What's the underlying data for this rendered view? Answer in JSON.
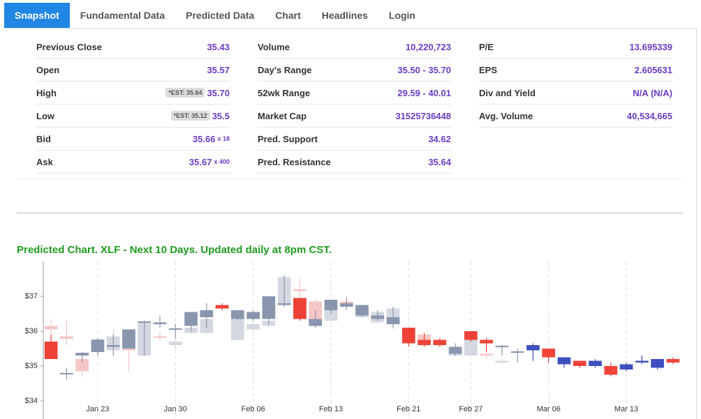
{
  "tabs": [
    "Snapshot",
    "Fundamental Data",
    "Predicted Data",
    "Chart",
    "Headlines",
    "Login"
  ],
  "snapshot": {
    "columns": [
      [
        {
          "label": "Previous Close",
          "value": "35.43"
        },
        {
          "label": "Open",
          "value": "35.57"
        },
        {
          "label": "High",
          "badge": "*EST: 35.64",
          "value": "35.70"
        },
        {
          "label": "Low",
          "badge": "*EST: 35.12",
          "value": "35.5"
        },
        {
          "label": "Bid",
          "value": "35.66",
          "size": "x 18"
        },
        {
          "label": "Ask",
          "value": "35.67",
          "size": "x 400"
        }
      ],
      [
        {
          "label": "Volume",
          "value": "10,220,723"
        },
        {
          "label": "Day's Range",
          "value": "35.50 - 35.70"
        },
        {
          "label": "52wk Range",
          "value": "29.59 - 40.01"
        },
        {
          "label": "Market Cap",
          "value": "31525736448"
        },
        {
          "label": "Pred. Support",
          "value": "34.62"
        },
        {
          "label": "Pred. Resistance",
          "value": "35.64"
        }
      ],
      [
        {
          "label": "P/E",
          "value": "13.695339"
        },
        {
          "label": "EPS",
          "value": "2.605631"
        },
        {
          "label": "Div and Yield",
          "value": "N/A (N/A)"
        },
        {
          "label": "Avg. Volume",
          "value": "40,534,665"
        }
      ]
    ]
  },
  "chart_data": {
    "type": "candlestick",
    "title": "Predicted Chart. XLF - Next 10 Days. Updated daily at 8pm CST.",
    "title_color": "#1f9a1f",
    "categories": [
      null,
      null,
      null,
      "Jan 23",
      null,
      null,
      null,
      null,
      "Jan 30",
      null,
      null,
      null,
      null,
      "Feb 06",
      null,
      null,
      null,
      null,
      "Feb 13",
      null,
      null,
      null,
      null,
      "Feb 21",
      null,
      null,
      null,
      "Feb 27",
      null,
      null,
      null,
      null,
      "Mar 06",
      null,
      null,
      null,
      null,
      "Mar 13",
      null,
      null,
      null
    ],
    "ylim": [
      34,
      38
    ],
    "yticks": [
      {
        "value": 34,
        "label": "$34"
      },
      {
        "value": 35,
        "label": "$35"
      },
      {
        "value": 36,
        "label": "$36"
      },
      {
        "value": 37,
        "label": "$37"
      }
    ],
    "grid": true,
    "series": [
      {
        "up_color": "#d4d8e1",
        "down_color": "#f4c6c6",
        "open": [
          36.15,
          35.85,
          35.2,
          35.45,
          35.45,
          35.55,
          35.3,
          35.85,
          35.6,
          35.95,
          35.95,
          36.65,
          35.75,
          36.05,
          36.15,
          36.75,
          37.2,
          36.85,
          36.3,
          36.85,
          36.4,
          36.25,
          36.25,
          null,
          35.9,
          null,
          35.3,
          35.3,
          35.35,
          35.1,
          null,
          null,
          null,
          null,
          null,
          null,
          null,
          null,
          null,
          null,
          null
        ],
        "close": [
          36.05,
          35.78,
          34.85,
          35.5,
          35.85,
          35.45,
          36.25,
          35.83,
          35.7,
          36.1,
          36.35,
          36.7,
          36.55,
          36.2,
          36.3,
          37.55,
          37.15,
          36.35,
          36.75,
          36.75,
          36.55,
          36.55,
          36.65,
          null,
          35.6,
          null,
          35.4,
          35.8,
          35.3,
          35.15,
          null,
          null,
          null,
          null,
          null,
          null,
          null,
          null,
          null,
          null,
          null
        ],
        "high": [
          36.35,
          36.3,
          35.3,
          35.55,
          36.05,
          35.9,
          36.25,
          36.0,
          35.8,
          36.1,
          36.45,
          36.75,
          36.6,
          36.3,
          36.4,
          37.6,
          37.5,
          36.9,
          36.9,
          37.0,
          36.75,
          36.6,
          36.7,
          null,
          35.95,
          null,
          35.45,
          35.8,
          35.45,
          35.2,
          null,
          null,
          null,
          null,
          null,
          null,
          null,
          null,
          null,
          null,
          null
        ],
        "low": [
          35.3,
          35.6,
          34.7,
          35.35,
          35.3,
          34.85,
          35.3,
          35.75,
          35.5,
          35.9,
          35.9,
          36.55,
          35.75,
          36.0,
          36.1,
          36.7,
          36.3,
          36.3,
          36.25,
          36.65,
          36.4,
          36.2,
          36.05,
          null,
          35.55,
          null,
          35.3,
          35.3,
          35.2,
          35.05,
          null,
          null,
          null,
          null,
          null,
          null,
          null,
          null,
          null,
          null,
          null
        ]
      },
      {
        "up_color": "#8a96ae",
        "down_color": "#ee4237",
        "open": [
          35.7,
          34.78,
          35.3,
          35.4,
          35.55,
          35.5,
          36.25,
          36.2,
          36.05,
          36.15,
          36.4,
          36.75,
          36.35,
          36.35,
          36.35,
          36.75,
          36.95,
          36.15,
          36.6,
          36.7,
          36.45,
          36.35,
          36.2,
          36.1,
          35.75,
          35.75,
          35.35,
          36.0,
          35.75,
          35.55,
          35.4,
          null,
          null,
          null,
          null,
          null,
          null,
          null,
          null,
          null,
          null
        ],
        "close": [
          35.2,
          34.8,
          35.38,
          35.76,
          35.6,
          36.05,
          36.28,
          36.25,
          36.08,
          36.55,
          36.6,
          36.65,
          36.6,
          36.55,
          37.0,
          36.8,
          36.35,
          36.35,
          36.9,
          36.8,
          36.75,
          36.45,
          36.4,
          35.65,
          35.6,
          35.6,
          35.55,
          35.75,
          35.65,
          35.58,
          35.42,
          null,
          null,
          null,
          null,
          null,
          null,
          null,
          null,
          null,
          null
        ],
        "high": [
          35.9,
          34.95,
          35.4,
          35.8,
          35.9,
          36.05,
          36.3,
          36.45,
          36.2,
          36.55,
          36.8,
          36.8,
          36.6,
          36.6,
          37.0,
          37.6,
          36.95,
          36.6,
          36.9,
          36.95,
          36.75,
          36.6,
          36.7,
          36.1,
          35.95,
          35.8,
          35.65,
          36.0,
          35.8,
          35.6,
          35.5,
          null,
          null,
          null,
          null,
          null,
          null,
          null,
          null,
          null,
          null
        ],
        "low": [
          35.2,
          34.6,
          35.1,
          35.3,
          35.3,
          35.5,
          35.3,
          36.1,
          35.8,
          36.0,
          36.1,
          36.6,
          36.3,
          36.3,
          36.2,
          36.7,
          36.3,
          36.1,
          36.5,
          36.6,
          36.4,
          36.3,
          36.1,
          35.55,
          35.55,
          35.55,
          35.3,
          35.7,
          35.4,
          35.3,
          35.1,
          null,
          null,
          null,
          null,
          null,
          null,
          null,
          null,
          null,
          null
        ]
      },
      {
        "up_color": "#3f4fbf",
        "down_color": "#f3443a",
        "open": [
          null,
          null,
          null,
          null,
          null,
          null,
          null,
          null,
          null,
          null,
          null,
          null,
          null,
          null,
          null,
          null,
          null,
          null,
          null,
          null,
          null,
          null,
          null,
          null,
          null,
          null,
          null,
          null,
          null,
          null,
          null,
          35.45,
          35.5,
          35.05,
          35.15,
          35.0,
          35.0,
          34.9,
          35.1,
          34.95,
          35.2
        ],
        "close": [
          null,
          null,
          null,
          null,
          null,
          null,
          null,
          null,
          null,
          null,
          null,
          null,
          null,
          null,
          null,
          null,
          null,
          null,
          null,
          null,
          null,
          null,
          null,
          null,
          null,
          null,
          null,
          null,
          null,
          null,
          null,
          35.6,
          35.25,
          35.25,
          35.0,
          35.15,
          34.75,
          35.05,
          35.15,
          35.2,
          35.1
        ],
        "high": [
          null,
          null,
          null,
          null,
          null,
          null,
          null,
          null,
          null,
          null,
          null,
          null,
          null,
          null,
          null,
          null,
          null,
          null,
          null,
          null,
          null,
          null,
          null,
          null,
          null,
          null,
          null,
          null,
          null,
          null,
          null,
          35.65,
          35.5,
          35.25,
          35.15,
          35.2,
          35.1,
          35.1,
          35.3,
          35.2,
          35.25
        ],
        "low": [
          null,
          null,
          null,
          null,
          null,
          null,
          null,
          null,
          null,
          null,
          null,
          null,
          null,
          null,
          null,
          null,
          null,
          null,
          null,
          null,
          null,
          null,
          null,
          null,
          null,
          null,
          null,
          null,
          null,
          null,
          null,
          35.15,
          35.1,
          34.95,
          34.95,
          34.95,
          34.7,
          34.85,
          35.05,
          34.9,
          35.05
        ]
      }
    ]
  }
}
